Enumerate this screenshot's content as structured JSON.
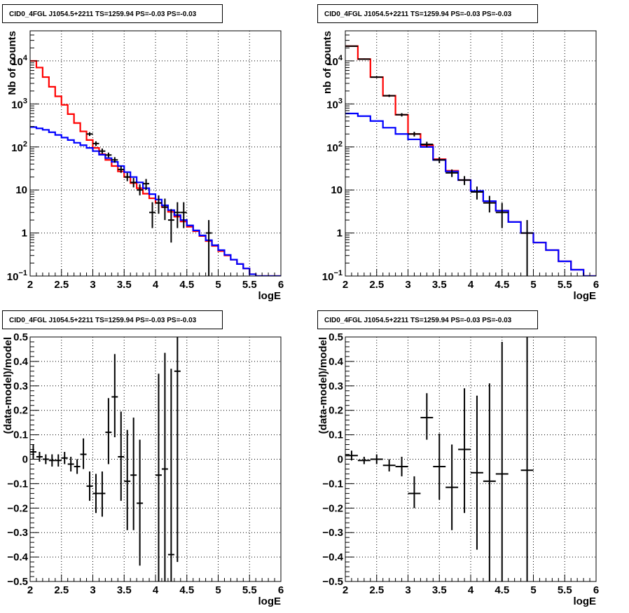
{
  "colors": {
    "total_model": "#ff0000",
    "component_model": "#0000ff",
    "data": "#000000",
    "grid": "#000000"
  },
  "chart_data": [
    {
      "type": "line",
      "title": "CID0_4FGL J1054.5+2211 TS=1259.94 PS=-0.03 PS=-0.03",
      "xlabel": "logE",
      "ylabel": "Nb of counts",
      "xlim": [
        2,
        6
      ],
      "ylim": [
        0.1,
        50000
      ],
      "log_y": true,
      "grid": true,
      "xticks": [
        "2",
        "2.5",
        "3",
        "3.5",
        "4",
        "4.5",
        "5",
        "5.5",
        "6"
      ],
      "yticks": [
        {
          "value": 0.1,
          "base": "10",
          "exp": "−1"
        },
        {
          "value": 1,
          "label": "1"
        },
        {
          "value": 10,
          "label": "10"
        },
        {
          "value": 100,
          "base": "10",
          "exp": "2"
        },
        {
          "value": 1000,
          "base": "10",
          "exp": "3"
        },
        {
          "value": 10000,
          "base": "10",
          "exp": "4"
        }
      ],
      "bin_edges": [
        2.0,
        2.1,
        2.2,
        2.3,
        2.4,
        2.5,
        2.6,
        2.7,
        2.8,
        2.9,
        3.0,
        3.1,
        3.2,
        3.3,
        3.4,
        3.5,
        3.6,
        3.7,
        3.8,
        3.9,
        4.0,
        4.1,
        4.2,
        4.3,
        4.4,
        4.5,
        4.6,
        4.7,
        4.8,
        4.9,
        5.0,
        5.1,
        5.2,
        5.3,
        5.4,
        5.5,
        5.6,
        5.7,
        5.8,
        5.9,
        6.0
      ],
      "series": [
        {
          "kind": "step",
          "color": "#ff0000",
          "values": [
            10000,
            7000,
            4200,
            2500,
            1500,
            950,
            580,
            360,
            230,
            145,
            95,
            68,
            50,
            36,
            27,
            20,
            14.5,
            11,
            8.2,
            6.4,
            5.0,
            4.0,
            3.1,
            2.4,
            1.85,
            1.4,
            1.1,
            0.85,
            0.65,
            0.5,
            0.38,
            0.3,
            0.24,
            0.19,
            0.15,
            0.11,
            0.1,
            0.1,
            0.1,
            0.1
          ]
        },
        {
          "kind": "step",
          "color": "#0000ff",
          "values": [
            290,
            270,
            250,
            220,
            190,
            165,
            145,
            125,
            110,
            95,
            80,
            66,
            55,
            45,
            36,
            26,
            20,
            15,
            11,
            8.0,
            6.0,
            4.4,
            3.4,
            2.6,
            2.0,
            1.5,
            1.15,
            0.88,
            0.68,
            0.52,
            0.4,
            0.31,
            0.24,
            0.19,
            0.15,
            0.11,
            0.1,
            0.1,
            0.1,
            0.1
          ]
        },
        {
          "kind": "errorbar",
          "color": "#000000",
          "points": [
            {
              "x": 2.95,
              "y": 200,
              "xerr": 0.05,
              "lo": 180,
              "hi": 220
            },
            {
              "x": 3.05,
              "y": 120,
              "xerr": 0.05,
              "lo": 105,
              "hi": 135
            },
            {
              "x": 3.15,
              "y": 80,
              "xerr": 0.05,
              "lo": 70,
              "hi": 92
            },
            {
              "x": 3.25,
              "y": 65,
              "xerr": 0.05,
              "lo": 57,
              "hi": 74
            },
            {
              "x": 3.35,
              "y": 50,
              "xerr": 0.05,
              "lo": 43,
              "hi": 58
            },
            {
              "x": 3.45,
              "y": 30,
              "xerr": 0.05,
              "lo": 25,
              "hi": 36
            },
            {
              "x": 3.55,
              "y": 20,
              "xerr": 0.05,
              "lo": 16,
              "hi": 25
            },
            {
              "x": 3.65,
              "y": 15,
              "xerr": 0.05,
              "lo": 11.5,
              "hi": 19
            },
            {
              "x": 3.75,
              "y": 10,
              "xerr": 0.05,
              "lo": 7.5,
              "hi": 13.5
            },
            {
              "x": 3.85,
              "y": 14,
              "xerr": 0.05,
              "lo": 10,
              "hi": 18
            },
            {
              "x": 3.95,
              "y": 3,
              "xerr": 0.05,
              "lo": 1.3,
              "hi": 5.2
            },
            {
              "x": 4.05,
              "y": 5,
              "xerr": 0.05,
              "lo": 2.8,
              "hi": 7.5
            },
            {
              "x": 4.15,
              "y": 4,
              "xerr": 0.05,
              "lo": 2.0,
              "hi": 6.3
            },
            {
              "x": 4.25,
              "y": 2,
              "xerr": 0.05,
              "lo": 0.6,
              "hi": 3.6
            },
            {
              "x": 4.35,
              "y": 3,
              "xerr": 0.05,
              "lo": 1.3,
              "hi": 5.2
            },
            {
              "x": 4.45,
              "y": 3,
              "xerr": 0.05,
              "lo": 1.3,
              "hi": 5.2
            },
            {
              "x": 4.85,
              "y": 1,
              "xerr": 0.05,
              "lo": 0.1,
              "hi": 2.0
            }
          ]
        }
      ]
    },
    {
      "type": "line",
      "title": "CID0_4FGL J1054.5+2211 TS=1259.94 PS=-0.03 PS=-0.03",
      "xlabel": "logE",
      "ylabel": "nb of counts",
      "xlim": [
        2,
        6
      ],
      "ylim": [
        0.1,
        50000
      ],
      "log_y": true,
      "grid": true,
      "xticks": [
        "2",
        "2.5",
        "3",
        "3.5",
        "4",
        "4.5",
        "5",
        "5.5",
        "6"
      ],
      "yticks": [
        {
          "value": 0.1,
          "base": "10",
          "exp": "−1"
        },
        {
          "value": 1,
          "label": "1"
        },
        {
          "value": 10,
          "label": "10"
        },
        {
          "value": 100,
          "base": "10",
          "exp": "2"
        },
        {
          "value": 1000,
          "base": "10",
          "exp": "3"
        },
        {
          "value": 10000,
          "base": "10",
          "exp": "4"
        }
      ],
      "bin_edges": [
        2.0,
        2.2,
        2.4,
        2.6,
        2.8,
        3.0,
        3.2,
        3.4,
        3.6,
        3.8,
        4.0,
        4.2,
        4.4,
        4.6,
        4.8,
        5.0,
        5.2,
        5.4,
        5.6,
        5.8,
        6.0
      ],
      "series": [
        {
          "kind": "step",
          "color": "#ff0000",
          "values": [
            22000,
            11000,
            4200,
            1550,
            560,
            200,
            110,
            52,
            28,
            17,
            9.5,
            5.5,
            3.3,
            1.8,
            1.0,
            0.6,
            0.4,
            0.22,
            0.14,
            0.1
          ]
        },
        {
          "kind": "step",
          "color": "#0000ff",
          "values": [
            600,
            520,
            400,
            280,
            200,
            150,
            100,
            50,
            27,
            17,
            9.5,
            5.5,
            3.3,
            1.8,
            1.0,
            0.6,
            0.4,
            0.22,
            0.14,
            0.1
          ]
        },
        {
          "kind": "errorbar",
          "color": "#000000",
          "points": [
            {
              "x": 2.1,
              "y": 22000,
              "xerr": 0.1,
              "lo": 21500,
              "hi": 22500
            },
            {
              "x": 2.3,
              "y": 11000,
              "xerr": 0.1,
              "lo": 10600,
              "hi": 11400
            },
            {
              "x": 2.5,
              "y": 4200,
              "xerr": 0.1,
              "lo": 4000,
              "hi": 4400
            },
            {
              "x": 2.7,
              "y": 1550,
              "xerr": 0.1,
              "lo": 1450,
              "hi": 1650
            },
            {
              "x": 2.9,
              "y": 560,
              "xerr": 0.1,
              "lo": 510,
              "hi": 610
            },
            {
              "x": 3.1,
              "y": 200,
              "xerr": 0.1,
              "lo": 175,
              "hi": 225
            },
            {
              "x": 3.3,
              "y": 115,
              "xerr": 0.1,
              "lo": 98,
              "hi": 132
            },
            {
              "x": 3.5,
              "y": 50,
              "xerr": 0.1,
              "lo": 42,
              "hi": 58
            },
            {
              "x": 3.7,
              "y": 25,
              "xerr": 0.1,
              "lo": 20,
              "hi": 30
            },
            {
              "x": 3.9,
              "y": 17,
              "xerr": 0.1,
              "lo": 13,
              "hi": 21
            },
            {
              "x": 4.1,
              "y": 9,
              "xerr": 0.1,
              "lo": 6,
              "hi": 12
            },
            {
              "x": 4.3,
              "y": 5,
              "xerr": 0.1,
              "lo": 3,
              "hi": 7.3
            },
            {
              "x": 4.5,
              "y": 3,
              "xerr": 0.1,
              "lo": 1.3,
              "hi": 5.0
            },
            {
              "x": 4.9,
              "y": 1,
              "xerr": 0.1,
              "lo": 0.1,
              "hi": 2.0
            }
          ]
        }
      ]
    },
    {
      "type": "scatter",
      "title": "CID0_4FGL J1054.5+2211 TS=1259.94 PS=-0.03 PS=-0.03",
      "xlabel": "logE",
      "ylabel": "(data-model)/model",
      "xlim": [
        2,
        6
      ],
      "ylim": [
        -0.5,
        0.5
      ],
      "grid": true,
      "xticks": [
        "2",
        "2.5",
        "3",
        "3.5",
        "4",
        "4.5",
        "5",
        "5.5",
        "6"
      ],
      "yticks": [
        "−0.5",
        "−0.4",
        "−0.3",
        "−0.2",
        "−0.1",
        "0",
        "0.1",
        "0.2",
        "0.3",
        "0.4",
        "0.5"
      ],
      "series": [
        {
          "kind": "errorbar",
          "color": "#000000",
          "points": [
            {
              "x": 2.05,
              "y": 0.03,
              "xerr": 0.05,
              "lo": 0.0,
              "hi": 0.06
            },
            {
              "x": 2.15,
              "y": 0.01,
              "xerr": 0.05,
              "lo": -0.01,
              "hi": 0.03
            },
            {
              "x": 2.25,
              "y": 0.0,
              "xerr": 0.05,
              "lo": -0.02,
              "hi": 0.02
            },
            {
              "x": 2.35,
              "y": -0.005,
              "xerr": 0.05,
              "lo": -0.03,
              "hi": 0.02
            },
            {
              "x": 2.45,
              "y": -0.005,
              "xerr": 0.05,
              "lo": -0.03,
              "hi": 0.02
            },
            {
              "x": 2.55,
              "y": 0.005,
              "xerr": 0.05,
              "lo": -0.02,
              "hi": 0.03
            },
            {
              "x": 2.65,
              "y": -0.02,
              "xerr": 0.05,
              "lo": -0.05,
              "hi": 0.01
            },
            {
              "x": 2.75,
              "y": -0.03,
              "xerr": 0.05,
              "lo": -0.06,
              "hi": 0.0
            },
            {
              "x": 2.85,
              "y": 0.02,
              "xerr": 0.05,
              "lo": -0.04,
              "hi": 0.085
            },
            {
              "x": 2.95,
              "y": -0.11,
              "xerr": 0.05,
              "lo": -0.17,
              "hi": -0.05
            },
            {
              "x": 3.05,
              "y": -0.14,
              "xerr": 0.05,
              "lo": -0.22,
              "hi": -0.06
            },
            {
              "x": 3.15,
              "y": -0.14,
              "xerr": 0.05,
              "lo": -0.235,
              "hi": -0.05
            },
            {
              "x": 3.25,
              "y": 0.11,
              "xerr": 0.05,
              "lo": -0.02,
              "hi": 0.25
            },
            {
              "x": 3.35,
              "y": 0.255,
              "xerr": 0.05,
              "lo": 0.09,
              "hi": 0.43
            },
            {
              "x": 3.45,
              "y": 0.01,
              "xerr": 0.05,
              "lo": -0.17,
              "hi": 0.195
            },
            {
              "x": 3.55,
              "y": -0.09,
              "xerr": 0.05,
              "lo": -0.29,
              "hi": 0.12
            },
            {
              "x": 3.65,
              "y": -0.065,
              "xerr": 0.05,
              "lo": -0.29,
              "hi": 0.17
            },
            {
              "x": 3.75,
              "y": -0.18,
              "xerr": 0.05,
              "lo": -0.435,
              "hi": 0.08
            },
            {
              "x": 4.05,
              "y": -0.065,
              "xerr": 0.05,
              "lo": -0.5,
              "hi": 0.35
            },
            {
              "x": 4.15,
              "y": -0.04,
              "xerr": 0.05,
              "lo": -0.5,
              "hi": 0.435
            },
            {
              "x": 4.25,
              "y": -0.39,
              "xerr": 0.05,
              "lo": -0.5,
              "hi": 0.37
            },
            {
              "x": 4.35,
              "y": 0.36,
              "xerr": 0.05,
              "lo": -0.42,
              "hi": 0.5
            }
          ]
        }
      ]
    },
    {
      "type": "scatter",
      "title": "CID0_4FGL J1054.5+2211 TS=1259.94 PS=-0.03 PS=-0.03",
      "xlabel": "logE",
      "ylabel": "(data-model)/model",
      "xlim": [
        2,
        6
      ],
      "ylim": [
        -0.5,
        0.5
      ],
      "grid": true,
      "xticks": [
        "2",
        "2.5",
        "3",
        "3.5",
        "4",
        "4.5",
        "5",
        "5.5",
        "6"
      ],
      "yticks": [
        "−0.5",
        "−0.4",
        "−0.3",
        "−0.2",
        "−0.1",
        "0",
        "0.1",
        "0.2",
        "0.3",
        "0.4",
        "0.5"
      ],
      "series": [
        {
          "kind": "errorbar",
          "color": "#000000",
          "points": [
            {
              "x": 2.1,
              "y": 0.015,
              "xerr": 0.1,
              "lo": -0.005,
              "hi": 0.035
            },
            {
              "x": 2.3,
              "y": -0.005,
              "xerr": 0.1,
              "lo": -0.02,
              "hi": 0.01
            },
            {
              "x": 2.5,
              "y": 0.0,
              "xerr": 0.1,
              "lo": -0.02,
              "hi": 0.02
            },
            {
              "x": 2.7,
              "y": -0.025,
              "xerr": 0.1,
              "lo": -0.05,
              "hi": 0.0
            },
            {
              "x": 2.9,
              "y": -0.03,
              "xerr": 0.1,
              "lo": -0.07,
              "hi": 0.01
            },
            {
              "x": 3.1,
              "y": -0.14,
              "xerr": 0.1,
              "lo": -0.2,
              "hi": -0.07
            },
            {
              "x": 3.3,
              "y": 0.17,
              "xerr": 0.1,
              "lo": 0.08,
              "hi": 0.27
            },
            {
              "x": 3.5,
              "y": -0.03,
              "xerr": 0.1,
              "lo": -0.165,
              "hi": 0.105
            },
            {
              "x": 3.7,
              "y": -0.115,
              "xerr": 0.1,
              "lo": -0.29,
              "hi": 0.06
            },
            {
              "x": 3.9,
              "y": 0.04,
              "xerr": 0.1,
              "lo": -0.22,
              "hi": 0.29
            },
            {
              "x": 4.1,
              "y": -0.055,
              "xerr": 0.1,
              "lo": -0.37,
              "hi": 0.26
            },
            {
              "x": 4.3,
              "y": -0.09,
              "xerr": 0.1,
              "lo": -0.5,
              "hi": 0.31
            },
            {
              "x": 4.5,
              "y": -0.06,
              "xerr": 0.1,
              "lo": -0.5,
              "hi": 0.48
            },
            {
              "x": 4.9,
              "y": -0.045,
              "xerr": 0.1,
              "lo": -0.5,
              "hi": 0.5
            }
          ]
        }
      ]
    }
  ]
}
